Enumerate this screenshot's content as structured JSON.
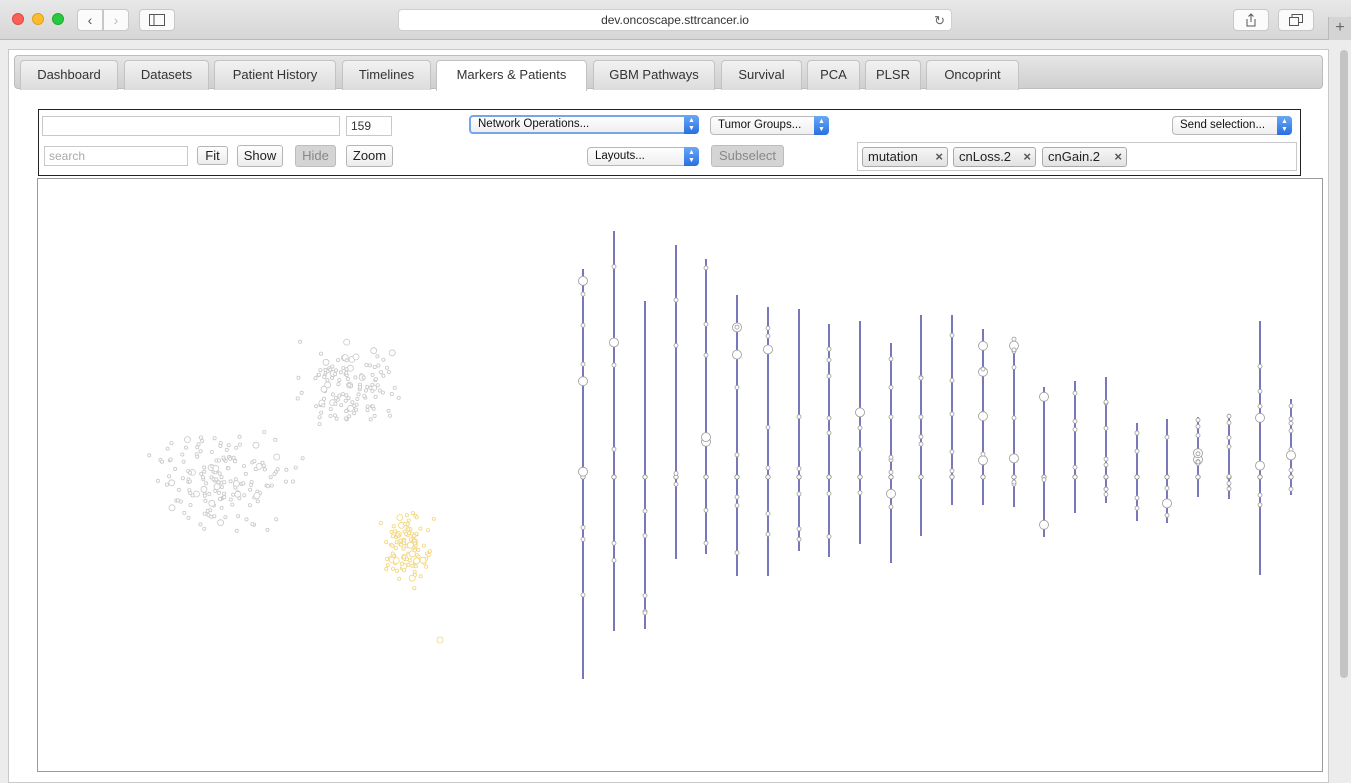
{
  "browser": {
    "url": "dev.oncoscape.sttrcancer.io"
  },
  "tabs": [
    {
      "label": "Dashboard"
    },
    {
      "label": "Datasets"
    },
    {
      "label": "Patient History"
    },
    {
      "label": "Timelines"
    },
    {
      "label": "Markers & Patients",
      "active": true
    },
    {
      "label": "GBM Pathways"
    },
    {
      "label": "Survival"
    },
    {
      "label": "PCA"
    },
    {
      "label": "PLSR"
    },
    {
      "label": "Oncoprint"
    }
  ],
  "toolbar": {
    "node_count": "159",
    "search_placeholder": "search",
    "fit_label": "Fit",
    "show_label": "Show",
    "hide_label": "Hide",
    "zoom_label": "Zoom",
    "network_operations": "Network Operations...",
    "tumor_groups": "Tumor Groups...",
    "layouts": "Layouts...",
    "subselect_label": "Subselect",
    "send_selection": "Send selection...",
    "chips": [
      {
        "label": "mutation"
      },
      {
        "label": "cnLoss.2"
      },
      {
        "label": "cnGain.2"
      }
    ]
  },
  "colors": {
    "patient_gray": "#c8c8c8",
    "patient_yellow": "#f2d67a",
    "chromosome_line": "#1d1d8c"
  },
  "icons": {
    "back": "chevron-left-icon",
    "forward": "chevron-right-icon",
    "sidebar": "sidebar-icon",
    "reload": "reload-icon",
    "share": "share-icon",
    "tabs": "tabs-icon",
    "chip_remove": "close-icon"
  }
}
